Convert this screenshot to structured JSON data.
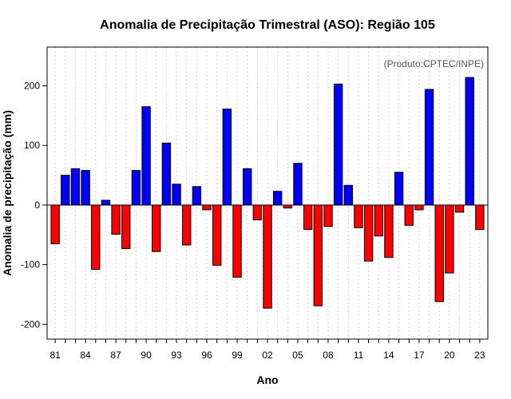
{
  "chart_data": {
    "type": "bar",
    "title": "Anomalia de Precipitação Trimestral (ASO): Região 105",
    "xlabel": "Ano",
    "ylabel": "Anomalia de precipitação (mm)",
    "note": "(Produto:CPTEC/INPE)",
    "ylim": [
      -225,
      265
    ],
    "yticks": [
      -200,
      -100,
      0,
      100,
      200
    ],
    "grid": "vertical dotted",
    "positive_color": "#0000ff",
    "negative_color": "#ff0000",
    "years": [
      1981,
      1982,
      1983,
      1984,
      1985,
      1986,
      1987,
      1988,
      1989,
      1990,
      1991,
      1992,
      1993,
      1994,
      1995,
      1996,
      1997,
      1998,
      1999,
      2000,
      2001,
      2002,
      2003,
      2004,
      2005,
      2006,
      2007,
      2008,
      2009,
      2010,
      2011,
      2012,
      2013,
      2014,
      2015,
      2016,
      2017,
      2018,
      2019,
      2020,
      2021,
      2022,
      2023
    ],
    "tick_labels": [
      "81",
      "84",
      "87",
      "90",
      "93",
      "96",
      "99",
      "02",
      "05",
      "08",
      "11",
      "14",
      "17",
      "20",
      "23"
    ],
    "values": [
      -65,
      50,
      61,
      58,
      -108,
      8,
      -49,
      -73,
      58,
      165,
      -78,
      104,
      35,
      -67,
      31,
      -8,
      -101,
      161,
      -121,
      61,
      -25,
      -173,
      23,
      -5,
      70,
      -41,
      -169,
      -36,
      203,
      33,
      -38,
      -94,
      -52,
      -88,
      55,
      -34,
      -8,
      194,
      -162,
      -114,
      -12,
      214,
      -41
    ]
  }
}
